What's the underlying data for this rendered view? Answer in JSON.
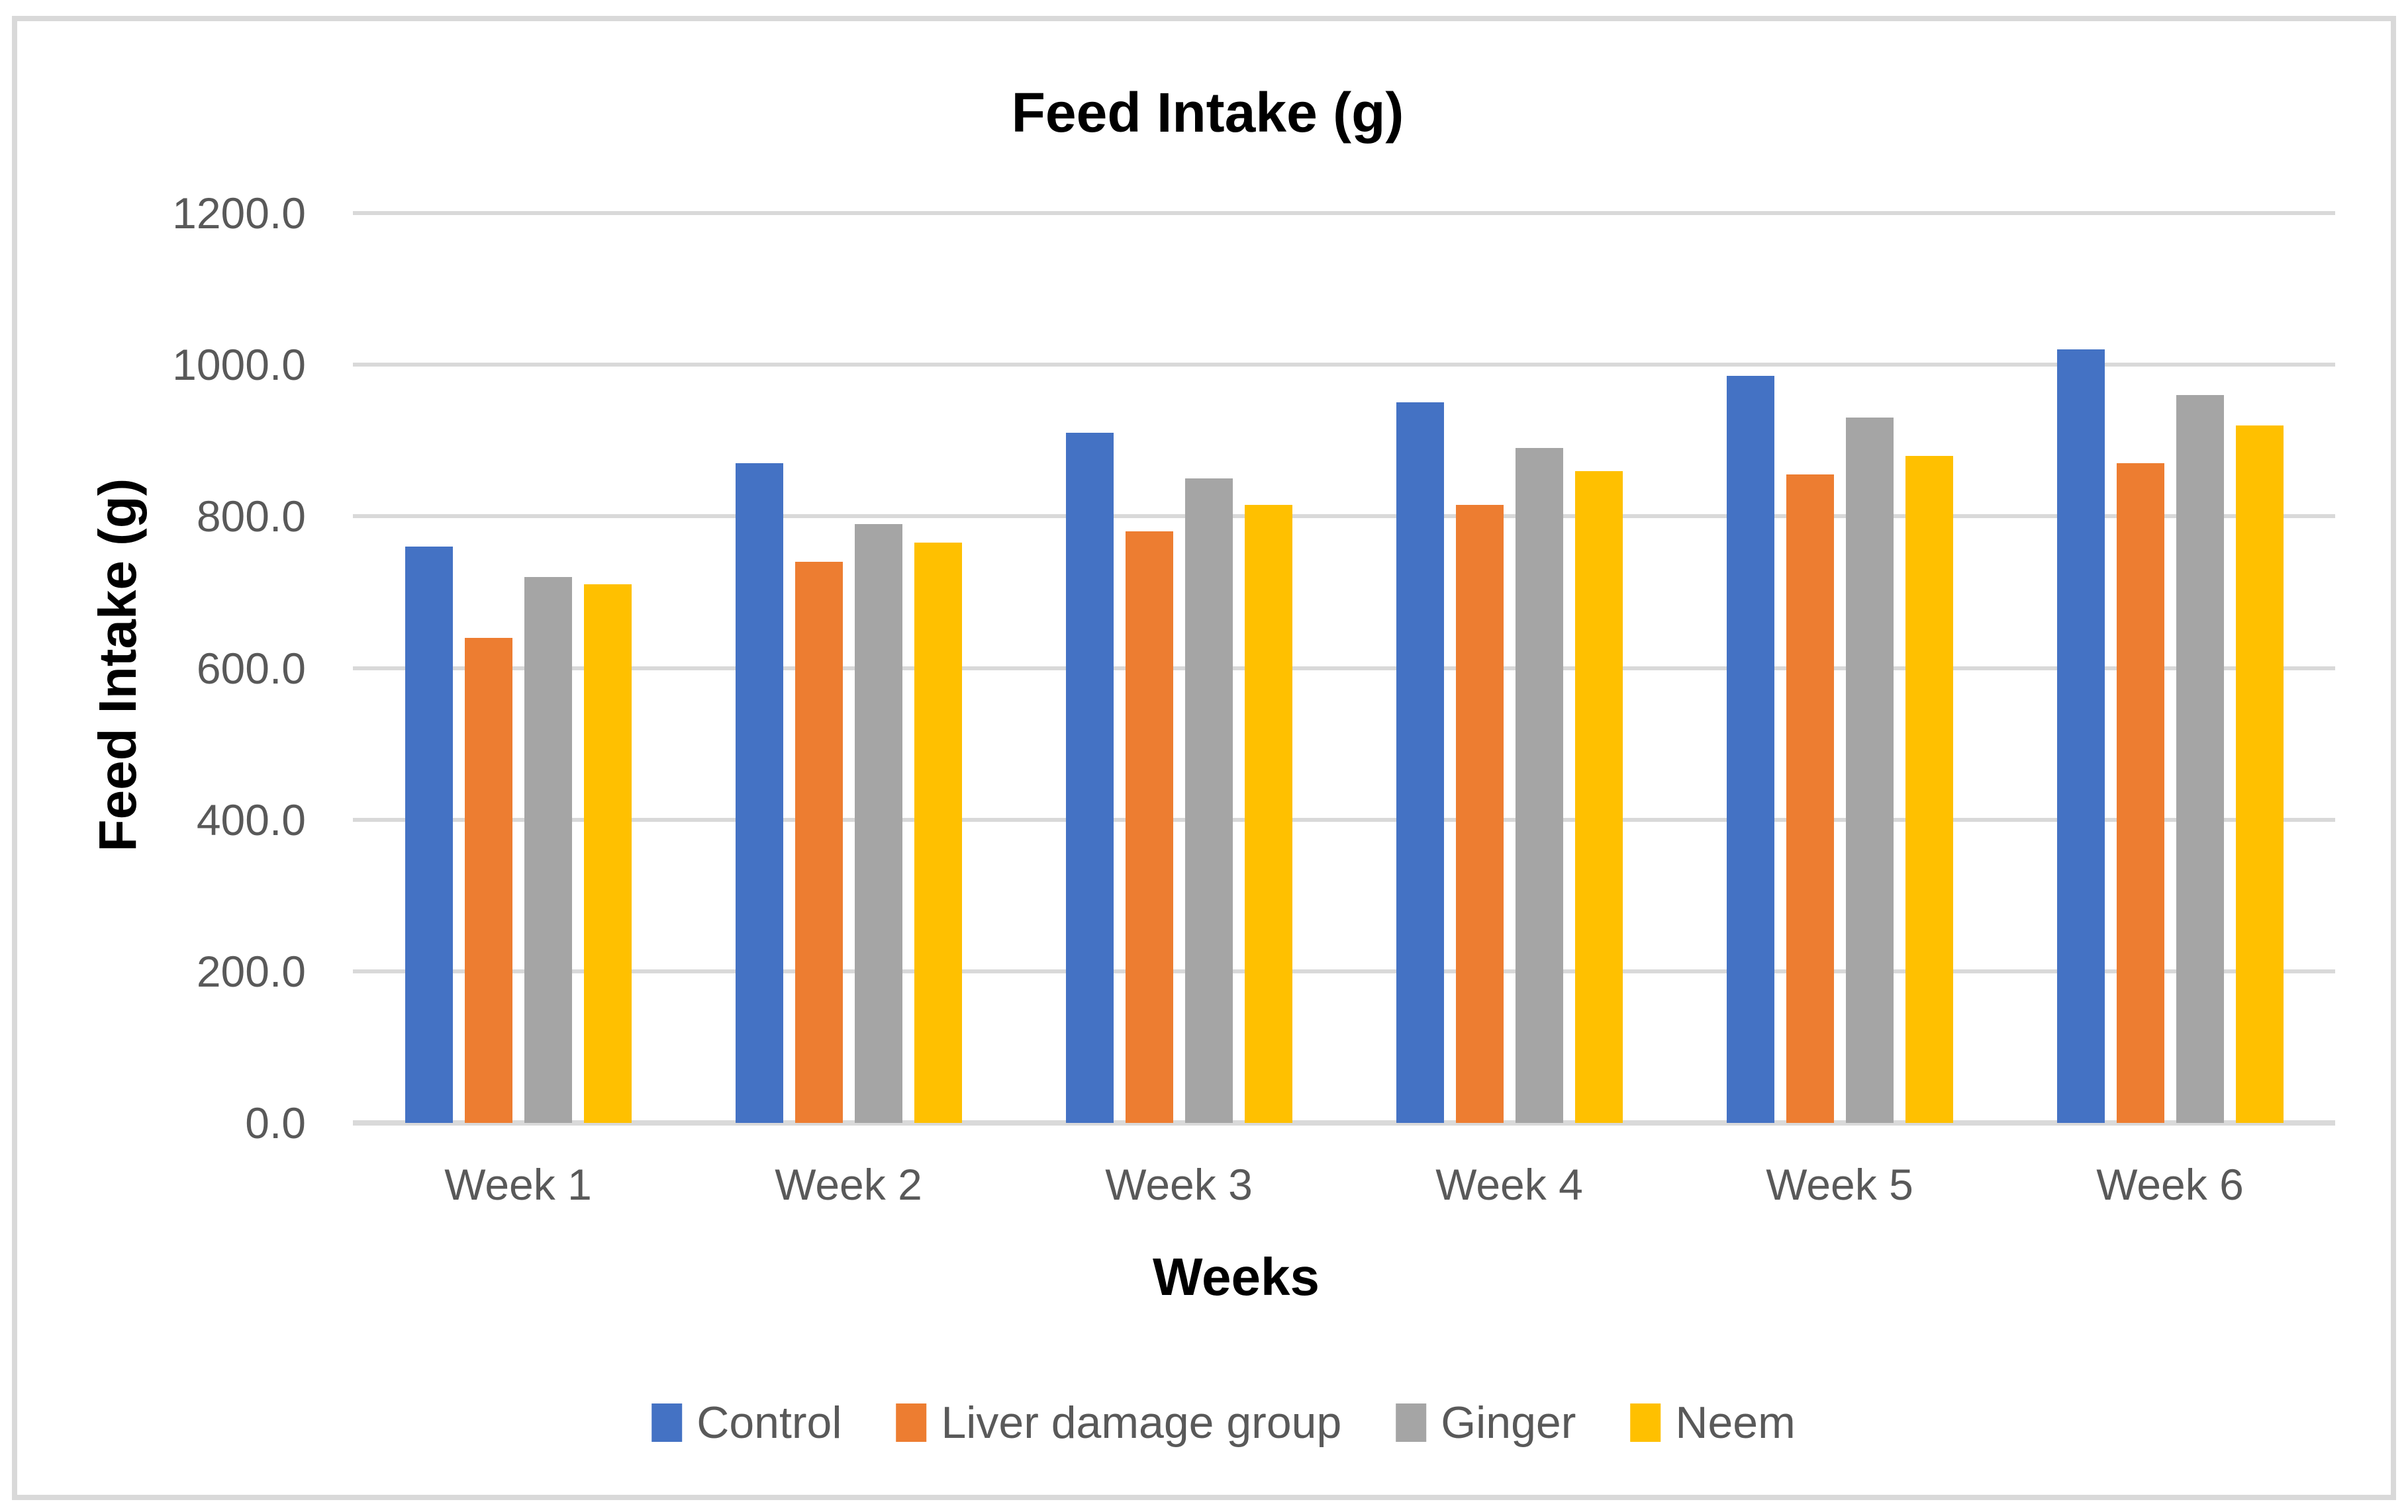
{
  "chart": {
    "title": "Feed Intake (g)"
  },
  "chart_data": {
    "type": "bar",
    "title": "Feed Intake (g)",
    "xlabel": "Weeks",
    "ylabel": "Feed Intake (g)",
    "categories": [
      "Week 1",
      "Week 2",
      "Week 3",
      "Week 4",
      "Week 5",
      "Week 6"
    ],
    "series": [
      {
        "name": "Control",
        "color": "#4472C4",
        "values": [
          760,
          870,
          910,
          950,
          985,
          1020
        ]
      },
      {
        "name": "Liver damage group",
        "color": "#ED7D31",
        "values": [
          640,
          740,
          780,
          815,
          855,
          870
        ]
      },
      {
        "name": "Ginger",
        "color": "#A5A5A5",
        "values": [
          720,
          790,
          850,
          890,
          930,
          960
        ]
      },
      {
        "name": "Neem",
        "color": "#FFC000",
        "values": [
          710,
          765,
          815,
          860,
          880,
          920
        ]
      }
    ],
    "ylim": [
      0,
      1200
    ],
    "ytick_step": 200,
    "ytick_labels": [
      "0.0",
      "200.0",
      "400.0",
      "600.0",
      "800.0",
      "1000.0",
      "1200.0"
    ],
    "grid": true,
    "legend_position": "bottom",
    "styling": {
      "gridline_color": "#D9D9D9",
      "tick_label_color": "#595959",
      "title_color": "#000000",
      "border_color": "#D9D9D9"
    }
  }
}
